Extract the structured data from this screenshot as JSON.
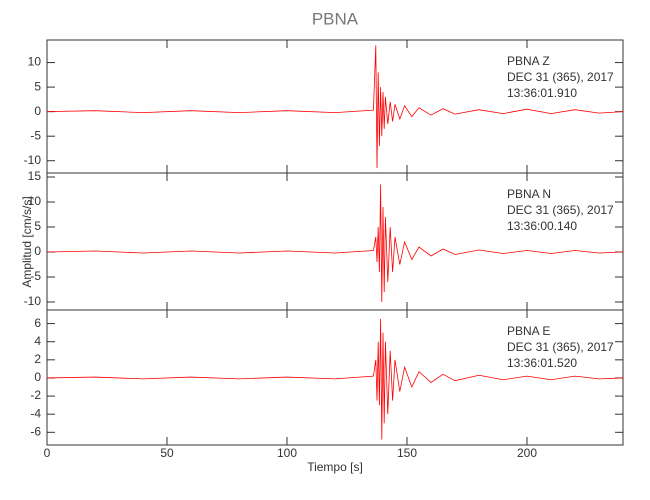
{
  "title": "PBNA",
  "xlabel": "Tiempo [s]",
  "ylabel": "Amplitud [cm/s/s]",
  "chart_data": [
    {
      "type": "line",
      "color": "#ff0000",
      "xlim": [
        0,
        240
      ],
      "xticks": [
        0,
        50,
        100,
        150,
        200
      ],
      "ylim": [
        -12.5,
        14.6
      ],
      "yticks": [
        -10,
        -5,
        0,
        5,
        10
      ],
      "annotations": [
        "PBNA   Z",
        "DEC 31 (365), 2017",
        "13:36:01.910"
      ],
      "x": [
        0,
        20,
        40,
        60,
        80,
        100,
        120,
        136,
        137,
        137.5,
        138,
        138.5,
        139,
        139.5,
        140,
        140.5,
        141,
        142,
        143,
        144,
        145,
        147,
        149,
        152,
        155,
        160,
        165,
        170,
        180,
        190,
        200,
        210,
        220,
        230,
        240
      ],
      "values": [
        0,
        0.2,
        -0.2,
        0.2,
        -0.2,
        0.2,
        -0.2,
        0.3,
        13.5,
        -11.5,
        8,
        -7,
        5,
        -5,
        4,
        -3.5,
        3,
        -2.5,
        2,
        -2,
        1.5,
        -1.5,
        1.2,
        -1,
        0.8,
        -0.7,
        0.6,
        -0.5,
        0.4,
        -0.4,
        0.5,
        -0.4,
        0.4,
        -0.3,
        0
      ]
    },
    {
      "type": "line",
      "color": "#ff0000",
      "xlim": [
        0,
        240
      ],
      "xticks": [
        0,
        50,
        100,
        150,
        200
      ],
      "ylim": [
        -11.6,
        15.8
      ],
      "yticks": [
        -10,
        -5,
        0,
        5,
        10,
        15
      ],
      "annotations": [
        "PBNA   N",
        "DEC 31 (365), 2017",
        "13:36:00.140"
      ],
      "x": [
        0,
        20,
        40,
        60,
        80,
        100,
        120,
        136,
        137,
        137.5,
        138,
        138.5,
        139,
        139.5,
        140,
        140.5,
        141,
        142,
        143,
        144,
        145,
        147,
        149,
        152,
        155,
        160,
        165,
        170,
        180,
        190,
        200,
        210,
        220,
        230,
        240
      ],
      "values": [
        0,
        0.2,
        -0.2,
        0.2,
        -0.2,
        0.2,
        -0.2,
        0.3,
        3,
        -2,
        5,
        -4,
        13.5,
        -10,
        9,
        -8,
        7,
        -6,
        5,
        -4,
        3,
        -2.5,
        2,
        -1.5,
        1,
        -0.8,
        0.6,
        -0.5,
        0.4,
        -0.3,
        0.3,
        -0.3,
        0.3,
        -0.2,
        0
      ]
    },
    {
      "type": "line",
      "color": "#ff0000",
      "xlim": [
        0,
        240
      ],
      "xticks": [
        0,
        50,
        100,
        150,
        200
      ],
      "ylim": [
        -7.4,
        7.5
      ],
      "yticks": [
        -6,
        -4,
        -2,
        0,
        2,
        4,
        6
      ],
      "annotations": [
        "PBNA   E",
        "DEC 31 (365), 2017",
        "13:36:01.520"
      ],
      "x": [
        0,
        20,
        40,
        60,
        80,
        100,
        120,
        136,
        137,
        137.5,
        138,
        138.5,
        139,
        139.5,
        140,
        140.5,
        141,
        142,
        143,
        144,
        145,
        147,
        149,
        152,
        155,
        160,
        165,
        170,
        180,
        190,
        200,
        210,
        220,
        230,
        240
      ],
      "values": [
        0,
        0.1,
        -0.1,
        0.1,
        -0.1,
        0.1,
        -0.1,
        0.2,
        2,
        -2.5,
        4,
        -3,
        6.5,
        -6.8,
        5,
        -5,
        4,
        -4,
        3,
        -2.5,
        2,
        -1.5,
        1.2,
        -1,
        0.7,
        -0.5,
        0.4,
        -0.3,
        0.3,
        -0.2,
        0.2,
        -0.2,
        0.2,
        -0.1,
        0
      ]
    }
  ]
}
